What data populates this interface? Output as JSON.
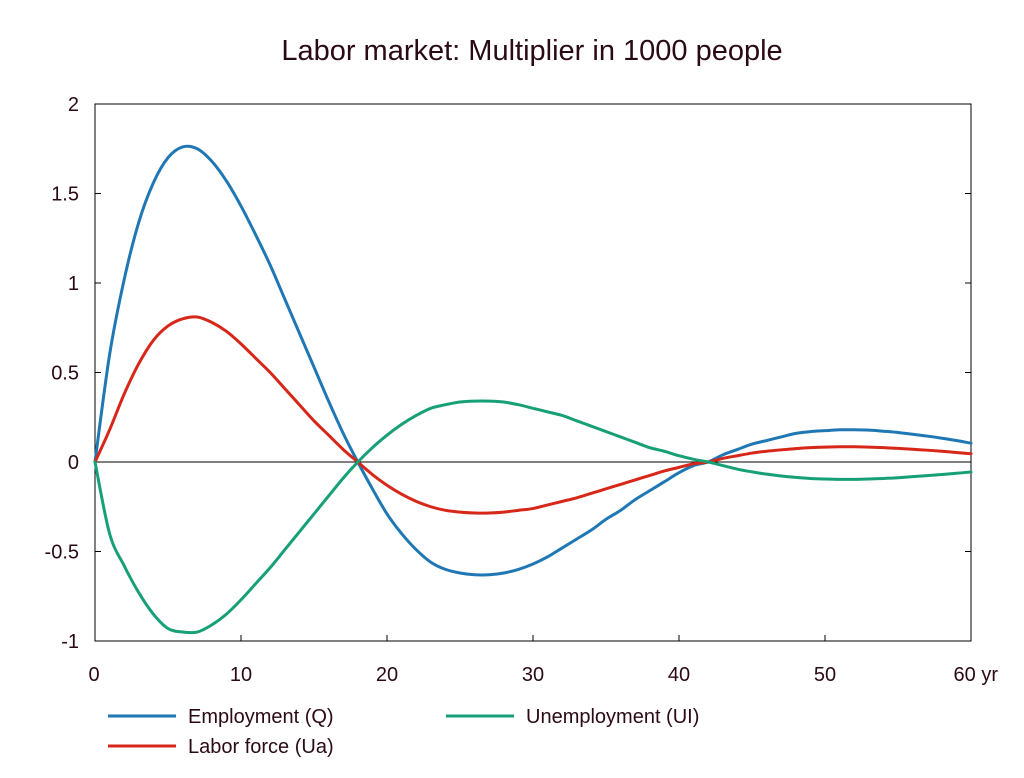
{
  "chart_data": {
    "type": "line",
    "title": "Labor market: Multiplier in 1000 people",
    "xlabel": "",
    "ylabel": "",
    "xlim": [
      0,
      60
    ],
    "ylim": [
      -1,
      2
    ],
    "x_ticks": [
      {
        "value": 0,
        "label": "0"
      },
      {
        "value": 10,
        "label": "10"
      },
      {
        "value": 20,
        "label": "20"
      },
      {
        "value": 30,
        "label": "30"
      },
      {
        "value": 40,
        "label": "40"
      },
      {
        "value": 50,
        "label": "50"
      },
      {
        "value": 60,
        "label": "60 yr"
      }
    ],
    "y_ticks": [
      {
        "value": 2,
        "label": "2"
      },
      {
        "value": 1.5,
        "label": "1.5"
      },
      {
        "value": 1,
        "label": "1"
      },
      {
        "value": 0.5,
        "label": "0.5"
      },
      {
        "value": 0,
        "label": "0"
      },
      {
        "value": -0.5,
        "label": "-0.5"
      },
      {
        "value": -1,
        "label": "-1"
      }
    ],
    "zero_line": true,
    "grid": false,
    "legend_position": "bottom",
    "series": [
      {
        "name": "Employment (Q)",
        "color": "#1f77b4",
        "points": [
          [
            0,
            0
          ],
          [
            1,
            0.6
          ],
          [
            2,
            1.02
          ],
          [
            3,
            1.34
          ],
          [
            4,
            1.56
          ],
          [
            5,
            1.7
          ],
          [
            6,
            1.76
          ],
          [
            7,
            1.75
          ],
          [
            8,
            1.68
          ],
          [
            9,
            1.57
          ],
          [
            10,
            1.43
          ],
          [
            11,
            1.27
          ],
          [
            12,
            1.1
          ],
          [
            13,
            0.91
          ],
          [
            14,
            0.72
          ],
          [
            15,
            0.53
          ],
          [
            16,
            0.34
          ],
          [
            17,
            0.16
          ],
          [
            18,
            0.0
          ],
          [
            19,
            -0.15
          ],
          [
            20,
            -0.29
          ],
          [
            21,
            -0.4
          ],
          [
            22,
            -0.49
          ],
          [
            23,
            -0.56
          ],
          [
            24,
            -0.6
          ],
          [
            25,
            -0.62
          ],
          [
            26,
            -0.63
          ],
          [
            27,
            -0.63
          ],
          [
            28,
            -0.62
          ],
          [
            29,
            -0.6
          ],
          [
            30,
            -0.57
          ],
          [
            31,
            -0.53
          ],
          [
            32,
            -0.48
          ],
          [
            33,
            -0.43
          ],
          [
            34,
            -0.38
          ],
          [
            35,
            -0.32
          ],
          [
            36,
            -0.27
          ],
          [
            37,
            -0.21
          ],
          [
            38,
            -0.16
          ],
          [
            39,
            -0.11
          ],
          [
            40,
            -0.06
          ],
          [
            41,
            -0.02
          ],
          [
            42,
            0.0
          ],
          [
            43,
            0.04
          ],
          [
            44,
            0.07
          ],
          [
            45,
            0.1
          ],
          [
            46,
            0.12
          ],
          [
            47,
            0.14
          ],
          [
            48,
            0.16
          ],
          [
            49,
            0.17
          ],
          [
            50,
            0.175
          ],
          [
            51,
            0.18
          ],
          [
            52,
            0.18
          ],
          [
            53,
            0.178
          ],
          [
            54,
            0.172
          ],
          [
            55,
            0.165
          ],
          [
            56,
            0.155
          ],
          [
            57,
            0.145
          ],
          [
            58,
            0.133
          ],
          [
            59,
            0.12
          ],
          [
            60,
            0.105
          ]
        ]
      },
      {
        "name": "Labor force (Ua)",
        "color": "#d62718",
        "points": [
          [
            0,
            0
          ],
          [
            1,
            0.18
          ],
          [
            2,
            0.38
          ],
          [
            3,
            0.55
          ],
          [
            4,
            0.68
          ],
          [
            5,
            0.76
          ],
          [
            6,
            0.8
          ],
          [
            7,
            0.81
          ],
          [
            8,
            0.78
          ],
          [
            9,
            0.73
          ],
          [
            10,
            0.66
          ],
          [
            11,
            0.58
          ],
          [
            12,
            0.5
          ],
          [
            13,
            0.41
          ],
          [
            14,
            0.32
          ],
          [
            15,
            0.23
          ],
          [
            16,
            0.15
          ],
          [
            17,
            0.07
          ],
          [
            18,
            0.0
          ],
          [
            19,
            -0.07
          ],
          [
            20,
            -0.13
          ],
          [
            21,
            -0.18
          ],
          [
            22,
            -0.22
          ],
          [
            23,
            -0.25
          ],
          [
            24,
            -0.27
          ],
          [
            25,
            -0.28
          ],
          [
            26,
            -0.285
          ],
          [
            27,
            -0.285
          ],
          [
            28,
            -0.28
          ],
          [
            29,
            -0.27
          ],
          [
            30,
            -0.26
          ],
          [
            31,
            -0.24
          ],
          [
            32,
            -0.22
          ],
          [
            33,
            -0.2
          ],
          [
            34,
            -0.175
          ],
          [
            35,
            -0.15
          ],
          [
            36,
            -0.125
          ],
          [
            37,
            -0.1
          ],
          [
            38,
            -0.075
          ],
          [
            39,
            -0.05
          ],
          [
            40,
            -0.03
          ],
          [
            41,
            -0.01
          ],
          [
            42,
            0.0
          ],
          [
            43,
            0.02
          ],
          [
            44,
            0.035
          ],
          [
            45,
            0.05
          ],
          [
            46,
            0.06
          ],
          [
            47,
            0.068
          ],
          [
            48,
            0.075
          ],
          [
            49,
            0.08
          ],
          [
            50,
            0.083
          ],
          [
            51,
            0.085
          ],
          [
            52,
            0.085
          ],
          [
            53,
            0.083
          ],
          [
            54,
            0.08
          ],
          [
            55,
            0.076
          ],
          [
            56,
            0.071
          ],
          [
            57,
            0.066
          ],
          [
            58,
            0.06
          ],
          [
            59,
            0.053
          ],
          [
            60,
            0.046
          ]
        ]
      },
      {
        "name": "Unemployment (UI)",
        "color": "#17a078",
        "points": [
          [
            0,
            0
          ],
          [
            1,
            -0.4
          ],
          [
            2,
            -0.58
          ],
          [
            3,
            -0.73
          ],
          [
            4,
            -0.85
          ],
          [
            5,
            -0.93
          ],
          [
            6,
            -0.95
          ],
          [
            7,
            -0.95
          ],
          [
            8,
            -0.91
          ],
          [
            9,
            -0.85
          ],
          [
            10,
            -0.77
          ],
          [
            11,
            -0.68
          ],
          [
            12,
            -0.59
          ],
          [
            13,
            -0.49
          ],
          [
            14,
            -0.39
          ],
          [
            15,
            -0.29
          ],
          [
            16,
            -0.19
          ],
          [
            17,
            -0.09
          ],
          [
            18,
            0.0
          ],
          [
            19,
            0.08
          ],
          [
            20,
            0.15
          ],
          [
            21,
            0.21
          ],
          [
            22,
            0.26
          ],
          [
            23,
            0.3
          ],
          [
            24,
            0.32
          ],
          [
            25,
            0.335
          ],
          [
            26,
            0.34
          ],
          [
            27,
            0.34
          ],
          [
            28,
            0.335
          ],
          [
            29,
            0.32
          ],
          [
            30,
            0.3
          ],
          [
            31,
            0.28
          ],
          [
            32,
            0.26
          ],
          [
            33,
            0.23
          ],
          [
            34,
            0.2
          ],
          [
            35,
            0.17
          ],
          [
            36,
            0.14
          ],
          [
            37,
            0.11
          ],
          [
            38,
            0.08
          ],
          [
            39,
            0.06
          ],
          [
            40,
            0.035
          ],
          [
            41,
            0.015
          ],
          [
            42,
            0.0
          ],
          [
            43,
            -0.02
          ],
          [
            44,
            -0.04
          ],
          [
            45,
            -0.055
          ],
          [
            46,
            -0.068
          ],
          [
            47,
            -0.078
          ],
          [
            48,
            -0.086
          ],
          [
            49,
            -0.092
          ],
          [
            50,
            -0.095
          ],
          [
            51,
            -0.097
          ],
          [
            52,
            -0.097
          ],
          [
            53,
            -0.095
          ],
          [
            54,
            -0.092
          ],
          [
            55,
            -0.088
          ],
          [
            56,
            -0.082
          ],
          [
            57,
            -0.076
          ],
          [
            58,
            -0.07
          ],
          [
            59,
            -0.063
          ],
          [
            60,
            -0.056
          ]
        ]
      }
    ]
  }
}
